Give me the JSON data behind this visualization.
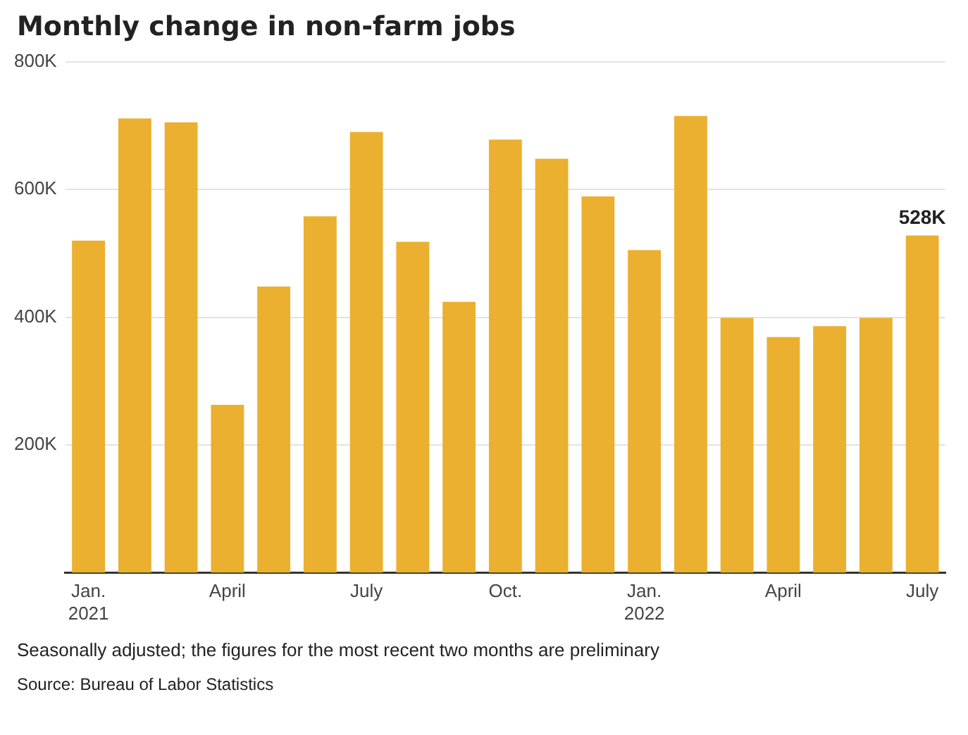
{
  "chart_data": {
    "type": "bar",
    "title": "Monthly change in non-farm jobs",
    "categories": [
      "Jan.\n2021",
      null,
      null,
      "April",
      null,
      null,
      "July",
      null,
      null,
      "Oct.",
      null,
      null,
      "Jan.\n2022",
      null,
      null,
      "April",
      null,
      null,
      "July"
    ],
    "values": [
      520,
      711,
      705,
      263,
      448,
      558,
      690,
      518,
      424,
      678,
      648,
      589,
      505,
      715,
      399,
      369,
      386,
      399,
      528
    ],
    "value_labels": [
      null,
      null,
      null,
      null,
      null,
      null,
      null,
      null,
      null,
      null,
      null,
      null,
      null,
      null,
      null,
      null,
      null,
      null,
      "528K"
    ],
    "color": "#ebb02f",
    "ylim": [
      0,
      800
    ],
    "yticks": [
      {
        "value": 200,
        "label": "200K"
      },
      {
        "value": 400,
        "label": "400K"
      },
      {
        "value": 600,
        "label": "600K"
      },
      {
        "value": 800,
        "label": "800K"
      }
    ],
    "grid": "y",
    "legend": false,
    "annotations": [
      "Seasonally adjusted; the figures for the most recent two months are preliminary",
      "Source: Bureau of Labor Statistics"
    ]
  }
}
